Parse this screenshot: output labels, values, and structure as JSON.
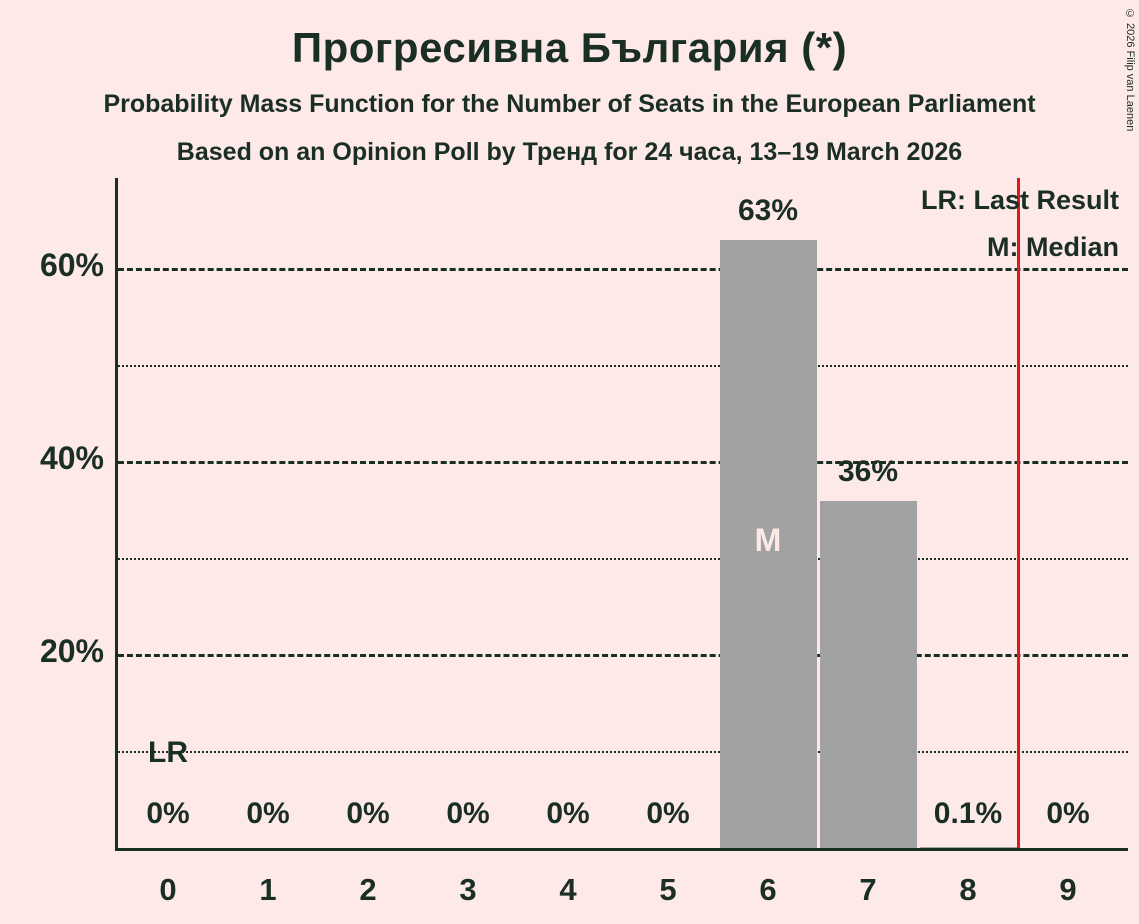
{
  "title": "Прогресивна България (*)",
  "subtitles": [
    "Probability Mass Function for the Number of Seats in the European Parliament",
    "Based on an Opinion Poll by Тренд for 24 часа, 13–19 March 2026"
  ],
  "copyright": "© 2026 Filip van Laenen",
  "legend": {
    "last_result": "LR: Last Result",
    "median": "M: Median"
  },
  "chart_data": {
    "type": "bar",
    "title": "Прогресивна България (*)",
    "categories": [
      "0",
      "1",
      "2",
      "3",
      "4",
      "5",
      "6",
      "7",
      "8",
      "9"
    ],
    "values": [
      0,
      0,
      0,
      0,
      0,
      0,
      63,
      36,
      0.1,
      0
    ],
    "bar_labels": [
      "0%",
      "0%",
      "0%",
      "0%",
      "0%",
      "0%",
      "63%",
      "36%",
      "0.1%",
      "0%"
    ],
    "y_ticks": [
      {
        "value": 20,
        "label": "20%"
      },
      {
        "value": 40,
        "label": "40%"
      },
      {
        "value": 60,
        "label": "60%"
      }
    ],
    "minor_gridlines": [
      10,
      30,
      50
    ],
    "ylim": [
      0,
      70
    ],
    "grid": true,
    "legend_position": "top-right",
    "median_category": "6",
    "median_marker_label": "M",
    "last_result_category": "0",
    "last_result_marker_label": "LR",
    "last_result_line_position": 8.5,
    "colors": {
      "background": "#fce9e8",
      "bar": "#a2a2a2",
      "text": "#1a2e24",
      "last_result_line": "#dc1a1a",
      "median_label": "#fce9e8"
    }
  }
}
